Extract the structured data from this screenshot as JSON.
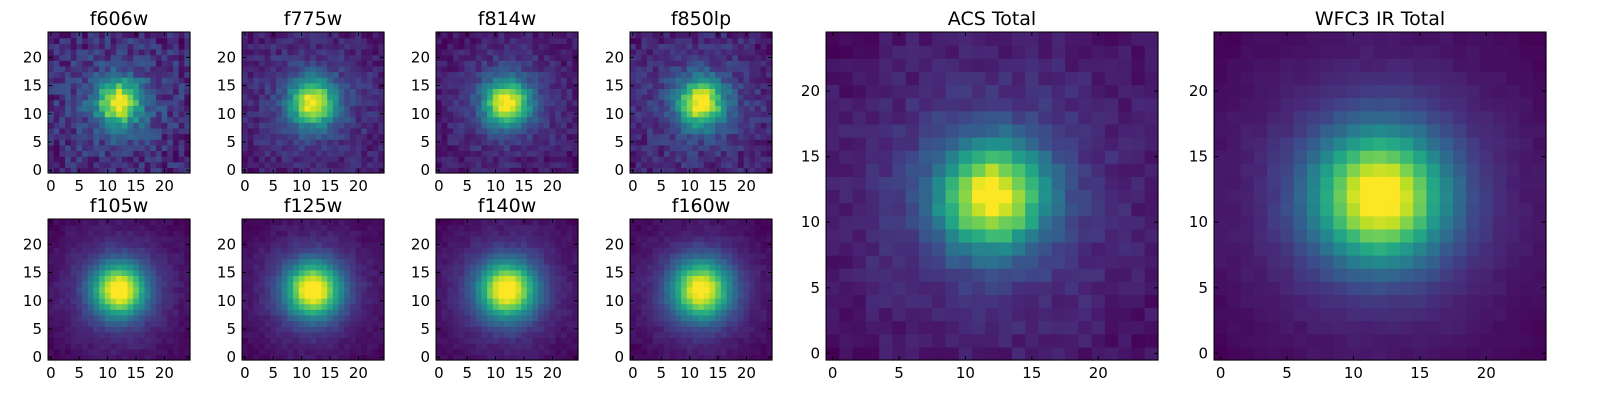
{
  "chart_data": [
    {
      "type": "heatmap",
      "title": "f606w",
      "colormap": "viridis",
      "x_ticks": [
        "0",
        "5",
        "10",
        "15",
        "20"
      ],
      "y_ticks": [
        "0",
        "5",
        "10",
        "15",
        "20"
      ],
      "grid_size": [
        25,
        25
      ],
      "center": [
        12,
        12
      ],
      "sigma": 2.6,
      "noise": 0.14,
      "xlim": [
        0,
        25
      ],
      "ylim": [
        0,
        25
      ]
    },
    {
      "type": "heatmap",
      "title": "f775w",
      "colormap": "viridis",
      "x_ticks": [
        "0",
        "5",
        "10",
        "15",
        "20"
      ],
      "y_ticks": [
        "0",
        "5",
        "10",
        "15",
        "20"
      ],
      "grid_size": [
        25,
        25
      ],
      "center": [
        12,
        12
      ],
      "sigma": 2.8,
      "noise": 0.09,
      "xlim": [
        0,
        25
      ],
      "ylim": [
        0,
        25
      ]
    },
    {
      "type": "heatmap",
      "title": "f814w",
      "colormap": "viridis",
      "x_ticks": [
        "0",
        "5",
        "10",
        "15",
        "20"
      ],
      "y_ticks": [
        "0",
        "5",
        "10",
        "15",
        "20"
      ],
      "grid_size": [
        25,
        25
      ],
      "center": [
        12,
        12
      ],
      "sigma": 2.8,
      "noise": 0.08,
      "xlim": [
        0,
        25
      ],
      "ylim": [
        0,
        25
      ]
    },
    {
      "type": "heatmap",
      "title": "f850lp",
      "colormap": "viridis",
      "x_ticks": [
        "0",
        "5",
        "10",
        "15",
        "20"
      ],
      "y_ticks": [
        "0",
        "5",
        "10",
        "15",
        "20"
      ],
      "grid_size": [
        25,
        25
      ],
      "center": [
        12,
        12
      ],
      "sigma": 2.8,
      "noise": 0.1,
      "xlim": [
        0,
        25
      ],
      "ylim": [
        0,
        25
      ]
    },
    {
      "type": "heatmap",
      "title": "f105w",
      "colormap": "viridis",
      "x_ticks": [
        "0",
        "5",
        "10",
        "15",
        "20"
      ],
      "y_ticks": [
        "0",
        "5",
        "10",
        "15",
        "20"
      ],
      "grid_size": [
        25,
        25
      ],
      "center": [
        12,
        12
      ],
      "sigma": 3.3,
      "noise": 0.03,
      "xlim": [
        0,
        25
      ],
      "ylim": [
        0,
        25
      ]
    },
    {
      "type": "heatmap",
      "title": "f125w",
      "colormap": "viridis",
      "x_ticks": [
        "0",
        "5",
        "10",
        "15",
        "20"
      ],
      "y_ticks": [
        "0",
        "5",
        "10",
        "15",
        "20"
      ],
      "grid_size": [
        25,
        25
      ],
      "center": [
        12,
        12
      ],
      "sigma": 3.4,
      "noise": 0.03,
      "xlim": [
        0,
        25
      ],
      "ylim": [
        0,
        25
      ]
    },
    {
      "type": "heatmap",
      "title": "f140w",
      "colormap": "viridis",
      "x_ticks": [
        "0",
        "5",
        "10",
        "15",
        "20"
      ],
      "y_ticks": [
        "0",
        "5",
        "10",
        "15",
        "20"
      ],
      "grid_size": [
        25,
        25
      ],
      "center": [
        12,
        12
      ],
      "sigma": 3.5,
      "noise": 0.03,
      "xlim": [
        0,
        25
      ],
      "ylim": [
        0,
        25
      ]
    },
    {
      "type": "heatmap",
      "title": "f160w",
      "colormap": "viridis",
      "x_ticks": [
        "0",
        "5",
        "10",
        "15",
        "20"
      ],
      "y_ticks": [
        "0",
        "5",
        "10",
        "15",
        "20"
      ],
      "grid_size": [
        25,
        25
      ],
      "center": [
        12,
        12
      ],
      "sigma": 3.6,
      "noise": 0.03,
      "xlim": [
        0,
        25
      ],
      "ylim": [
        0,
        25
      ]
    },
    {
      "type": "heatmap",
      "title": "ACS Total",
      "colormap": "viridis",
      "x_ticks": [
        "0",
        "5",
        "10",
        "15",
        "20"
      ],
      "y_ticks": [
        "0",
        "5",
        "10",
        "15",
        "20"
      ],
      "grid_size": [
        25,
        25
      ],
      "center": [
        12,
        12
      ],
      "sigma": 2.8,
      "noise": 0.05,
      "xlim": [
        0,
        25
      ],
      "ylim": [
        0,
        25
      ]
    },
    {
      "type": "heatmap",
      "title": "WFC3 IR Total",
      "colormap": "viridis",
      "x_ticks": [
        "0",
        "5",
        "10",
        "15",
        "20"
      ],
      "y_ticks": [
        "0",
        "5",
        "10",
        "15",
        "20"
      ],
      "grid_size": [
        25,
        25
      ],
      "center": [
        12,
        12
      ],
      "sigma": 3.5,
      "noise": 0.015,
      "xlim": [
        0,
        25
      ],
      "ylim": [
        0,
        25
      ]
    }
  ]
}
